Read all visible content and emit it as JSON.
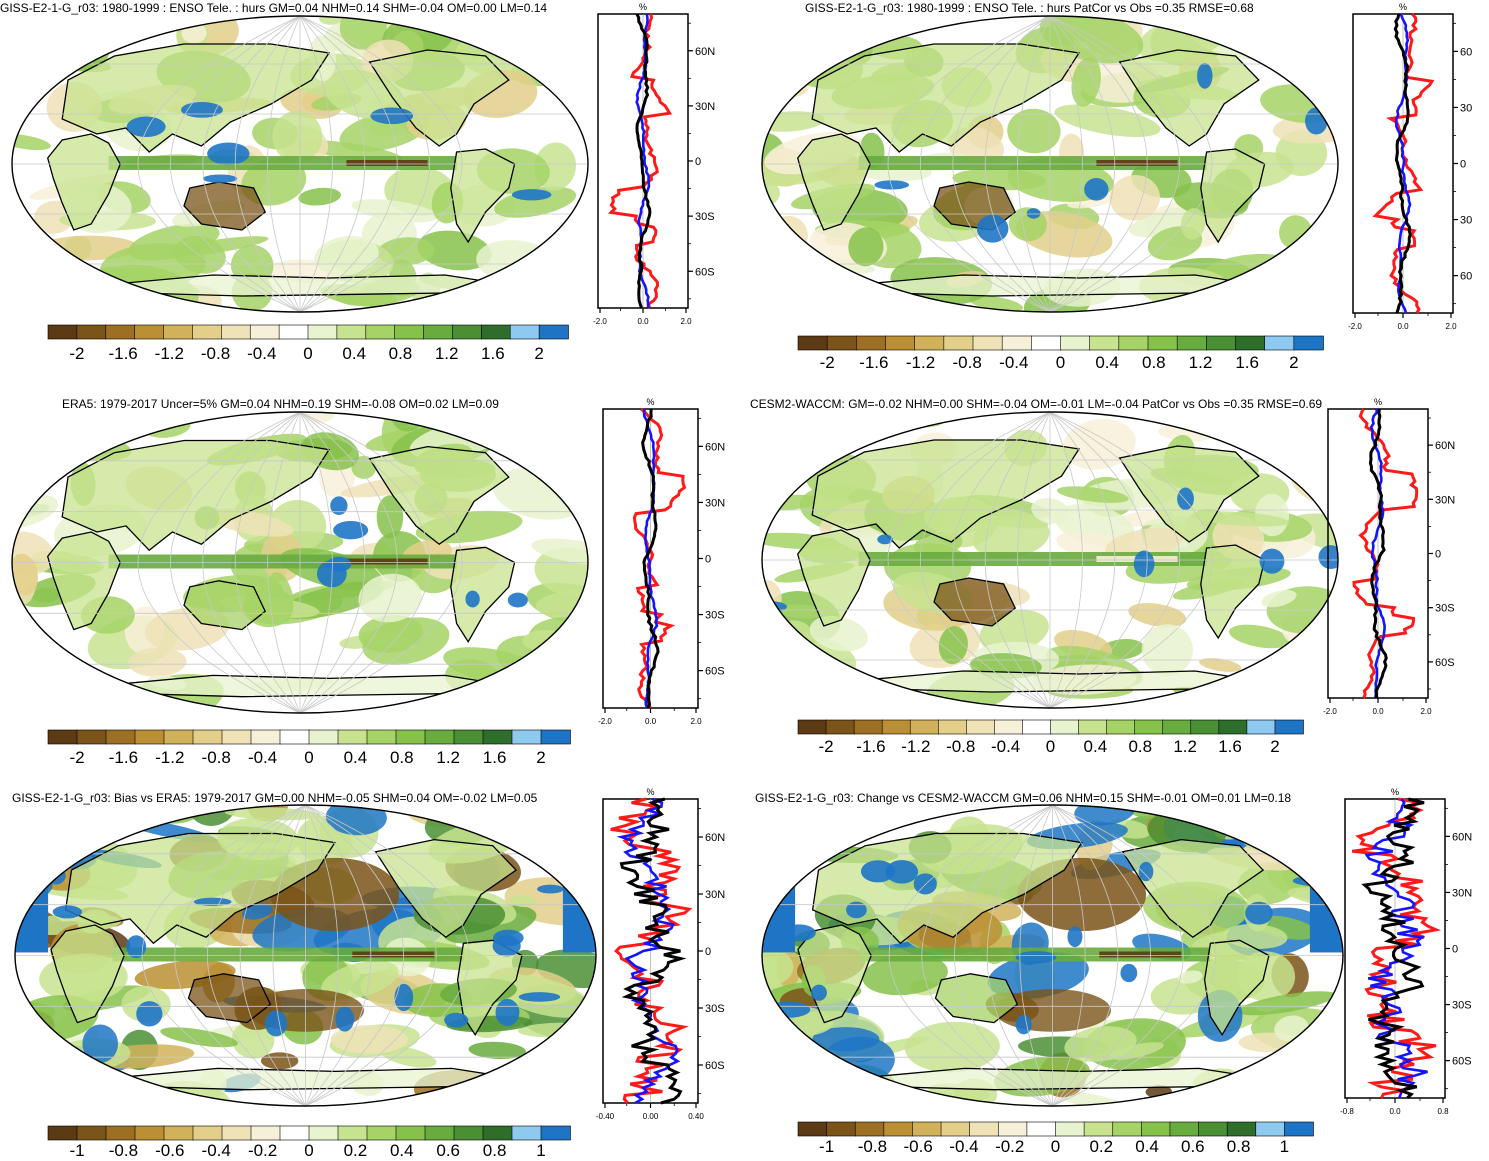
{
  "panels": [
    {
      "id": "p1",
      "title": "GISS-E2-1-G_r03: 1980-1999 : ENSO Tele. : hurs GM=0.04 NHM=0.14 SHM=-0.04 OM=0.00 LM=0.14",
      "profile": {
        "unit": "%",
        "lat_ticks": [
          "60N",
          "30N",
          "0",
          "30S",
          "60S"
        ],
        "x_ticks": [
          "-2.0",
          "0.0",
          "2.0"
        ]
      },
      "colorbar_labels": [
        "-2",
        "-1.6",
        "-1.2",
        "-0.8",
        "-0.4",
        "0",
        "0.4",
        "0.8",
        "1.2",
        "1.6",
        "2"
      ]
    },
    {
      "id": "p2",
      "title": "GISS-E2-1-G_r03: 1980-1999 : ENSO Tele. : hurs PatCor vs Obs =0.35 RMSE=0.68",
      "profile": {
        "unit": "%",
        "lat_ticks": [
          "60",
          "30",
          "0",
          "30",
          "60"
        ],
        "x_ticks": [
          "-2.0",
          "0.0",
          "2.0"
        ]
      },
      "colorbar_labels": [
        "-2",
        "-1.6",
        "-1.2",
        "-0.8",
        "-0.4",
        "0",
        "0.4",
        "0.8",
        "1.2",
        "1.6",
        "2"
      ]
    },
    {
      "id": "p3",
      "title": "ERA5: 1979-2017 Uncer=5% GM=0.04 NHM=0.19 SHM=-0.08 OM=0.02 LM=0.09",
      "profile": {
        "unit": "%",
        "lat_ticks": [
          "60N",
          "30N",
          "0",
          "30S",
          "60S"
        ],
        "x_ticks": [
          "-2.0",
          "0.0",
          "2.0"
        ]
      },
      "colorbar_labels": [
        "-2",
        "-1.6",
        "-1.2",
        "-0.8",
        "-0.4",
        "0",
        "0.4",
        "0.8",
        "1.2",
        "1.6",
        "2"
      ]
    },
    {
      "id": "p4",
      "title": "CESM2-WACCM: GM=-0.02 NHM=0.00 SHM=-0.04 OM=-0.01 LM=-0.04 PatCor vs Obs =0.35 RMSE=0.69",
      "profile": {
        "unit": "%",
        "lat_ticks": [
          "60N",
          "30N",
          "0",
          "30S",
          "60S"
        ],
        "x_ticks": [
          "-2.0",
          "0.0",
          "2.0"
        ]
      },
      "colorbar_labels": [
        "-2",
        "-1.6",
        "-1.2",
        "-0.8",
        "-0.4",
        "0",
        "0.4",
        "0.8",
        "1.2",
        "1.6",
        "2"
      ]
    },
    {
      "id": "p5",
      "title": "GISS-E2-1-G_r03: Bias vs ERA5: 1979-2017 GM=0.00 NHM=-0.05 SHM=0.04 OM=-0.02 LM=0.05",
      "profile": {
        "unit": "%",
        "lat_ticks": [
          "60N",
          "30N",
          "0",
          "30S",
          "60S"
        ],
        "x_ticks": [
          "-0.40",
          "0.00",
          "0.40"
        ]
      },
      "colorbar_labels": [
        "-1",
        "-0.8",
        "-0.6",
        "-0.4",
        "-0.2",
        "0",
        "0.2",
        "0.4",
        "0.6",
        "0.8",
        "1"
      ]
    },
    {
      "id": "p6",
      "title": "GISS-E2-1-G_r03: Change vs CESM2-WACCM GM=0.06 NHM=0.15 SHM=-0.01 OM=0.01 LM=0.18",
      "profile": {
        "unit": "%",
        "lat_ticks": [
          "60N",
          "30N",
          "0",
          "30S",
          "60S"
        ],
        "x_ticks": [
          "-0.8",
          "0.0",
          "0.8"
        ]
      },
      "colorbar_labels": [
        "-1",
        "-0.8",
        "-0.6",
        "-0.4",
        "-0.2",
        "0",
        "0.2",
        "0.4",
        "0.6",
        "0.8",
        "1"
      ]
    }
  ],
  "colors": {
    "palette": [
      "#5c3a14",
      "#7a5418",
      "#9c6f22",
      "#bb8f33",
      "#d1b25a",
      "#e3cf8a",
      "#efe2b6",
      "#f7f0d8",
      "#ffffff",
      "#e8f3cf",
      "#c7e38f",
      "#a5d366",
      "#86c24a",
      "#68ab3e",
      "#4b8f34",
      "#2f6e2a",
      "#8ec9ef",
      "#1e75c6"
    ],
    "land_outline": "#000000",
    "grid": "#c8c8c8",
    "profile_red": "#ff1a1a",
    "profile_blue": "#1414ff",
    "profile_black": "#000000"
  }
}
